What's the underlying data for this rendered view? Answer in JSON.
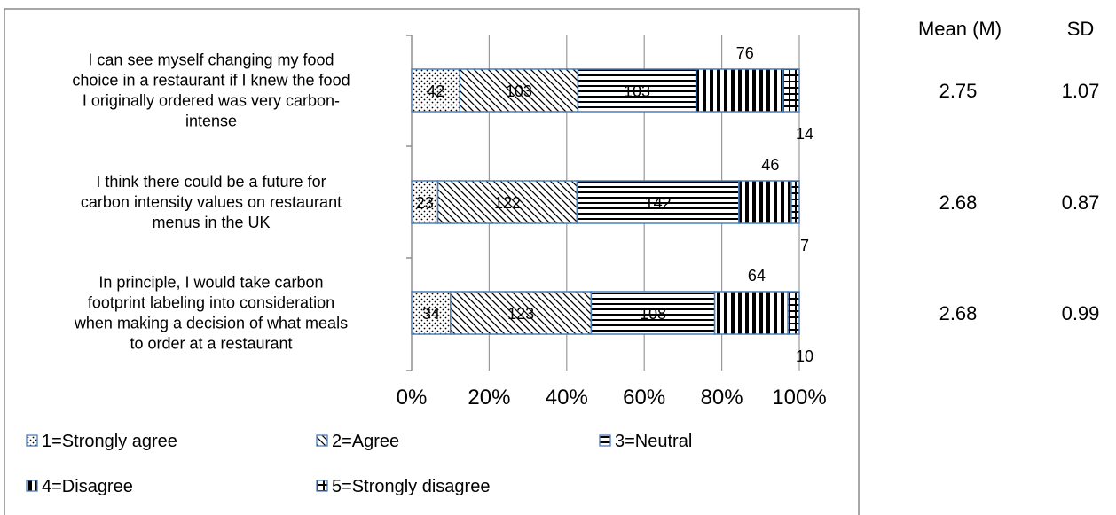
{
  "chart_data": {
    "type": "bar",
    "orientation": "horizontal",
    "stacked": "percent",
    "categories": [
      [
        "I can see myself changing my food",
        "choice in a restaurant if I knew the food",
        "I originally ordered was very carbon-",
        "intense"
      ],
      [
        "I think there could be a future for",
        "carbon intensity values on restaurant",
        "menus in the UK"
      ],
      [
        "In principle, I would take carbon",
        "footprint labeling into consideration",
        "when making a decision of what meals",
        "to order at a restaurant"
      ]
    ],
    "series": [
      {
        "name": "1=Strongly agree",
        "values": [
          42,
          23,
          34
        ]
      },
      {
        "name": "2=Agree",
        "values": [
          103,
          122,
          123
        ]
      },
      {
        "name": "3=Neutral",
        "values": [
          103,
          142,
          108
        ]
      },
      {
        "name": "4=Disagree",
        "values": [
          76,
          46,
          64
        ]
      },
      {
        "name": "5=Strongly disagree",
        "values": [
          14,
          7,
          10
        ]
      }
    ],
    "x_ticks": [
      "0%",
      "20%",
      "40%",
      "60%",
      "80%",
      "100%"
    ],
    "xlim": [
      0,
      100
    ],
    "grid": true,
    "legend_position": "bottom"
  },
  "stats": {
    "mean_header": "Mean (M)",
    "sd_header": "SD",
    "rows": [
      {
        "mean": "2.75",
        "sd": "1.07"
      },
      {
        "mean": "2.68",
        "sd": "0.87"
      },
      {
        "mean": "2.68",
        "sd": "0.99"
      }
    ]
  }
}
